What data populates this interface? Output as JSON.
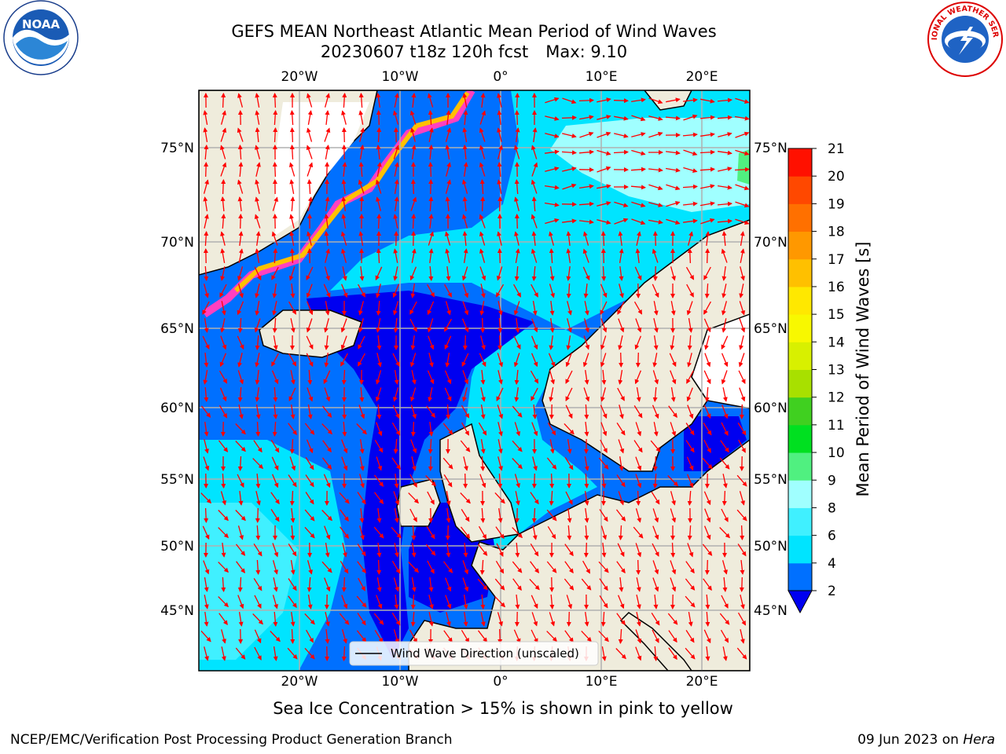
{
  "title": {
    "line1": "GEFS MEAN Northeast Atlantic Mean Period of Wind Waves",
    "date_fcst": "20230607 t18z 120h fcst",
    "max": "Max: 9.10"
  },
  "colorbar": {
    "label": "Mean Period of Wind Waves [s]",
    "ticks": [
      "2",
      "4",
      "6",
      "8",
      "9",
      "10",
      "11",
      "12",
      "13",
      "14",
      "15",
      "16",
      "17",
      "18",
      "19",
      "20",
      "21"
    ],
    "colors": [
      "#0070ff",
      "#00e4ff",
      "#40f0ff",
      "#a0ffff",
      "#50f080",
      "#00e020",
      "#40d020",
      "#a8e000",
      "#d8f000",
      "#f8f800",
      "#ffe800",
      "#ffc000",
      "#ff9800",
      "#ff7000",
      "#ff4800",
      "#ff1000"
    ],
    "under_color": "#0000f0"
  },
  "map": {
    "lon_labels": [
      "20°W",
      "10°W",
      "0°",
      "10°E",
      "20°E"
    ],
    "lat_labels": [
      "75°N",
      "70°N",
      "65°N",
      "60°N",
      "55°N",
      "50°N",
      "45°N"
    ],
    "legend": "Wind Wave Direction (unscaled)",
    "land_color": "#efecdc",
    "arrow_color": "#ff0000"
  },
  "footer": {
    "note": "Sea Ice Concentration > 15% is shown in pink to yellow",
    "left": "NCEP/EMC/Verification Post Processing Product Generation Branch",
    "date": "09 Jun 2023 on ",
    "host": "Hera"
  },
  "logos": {
    "noaa": "NOAA",
    "nws": "NATIONAL WEATHER SERVICE"
  }
}
